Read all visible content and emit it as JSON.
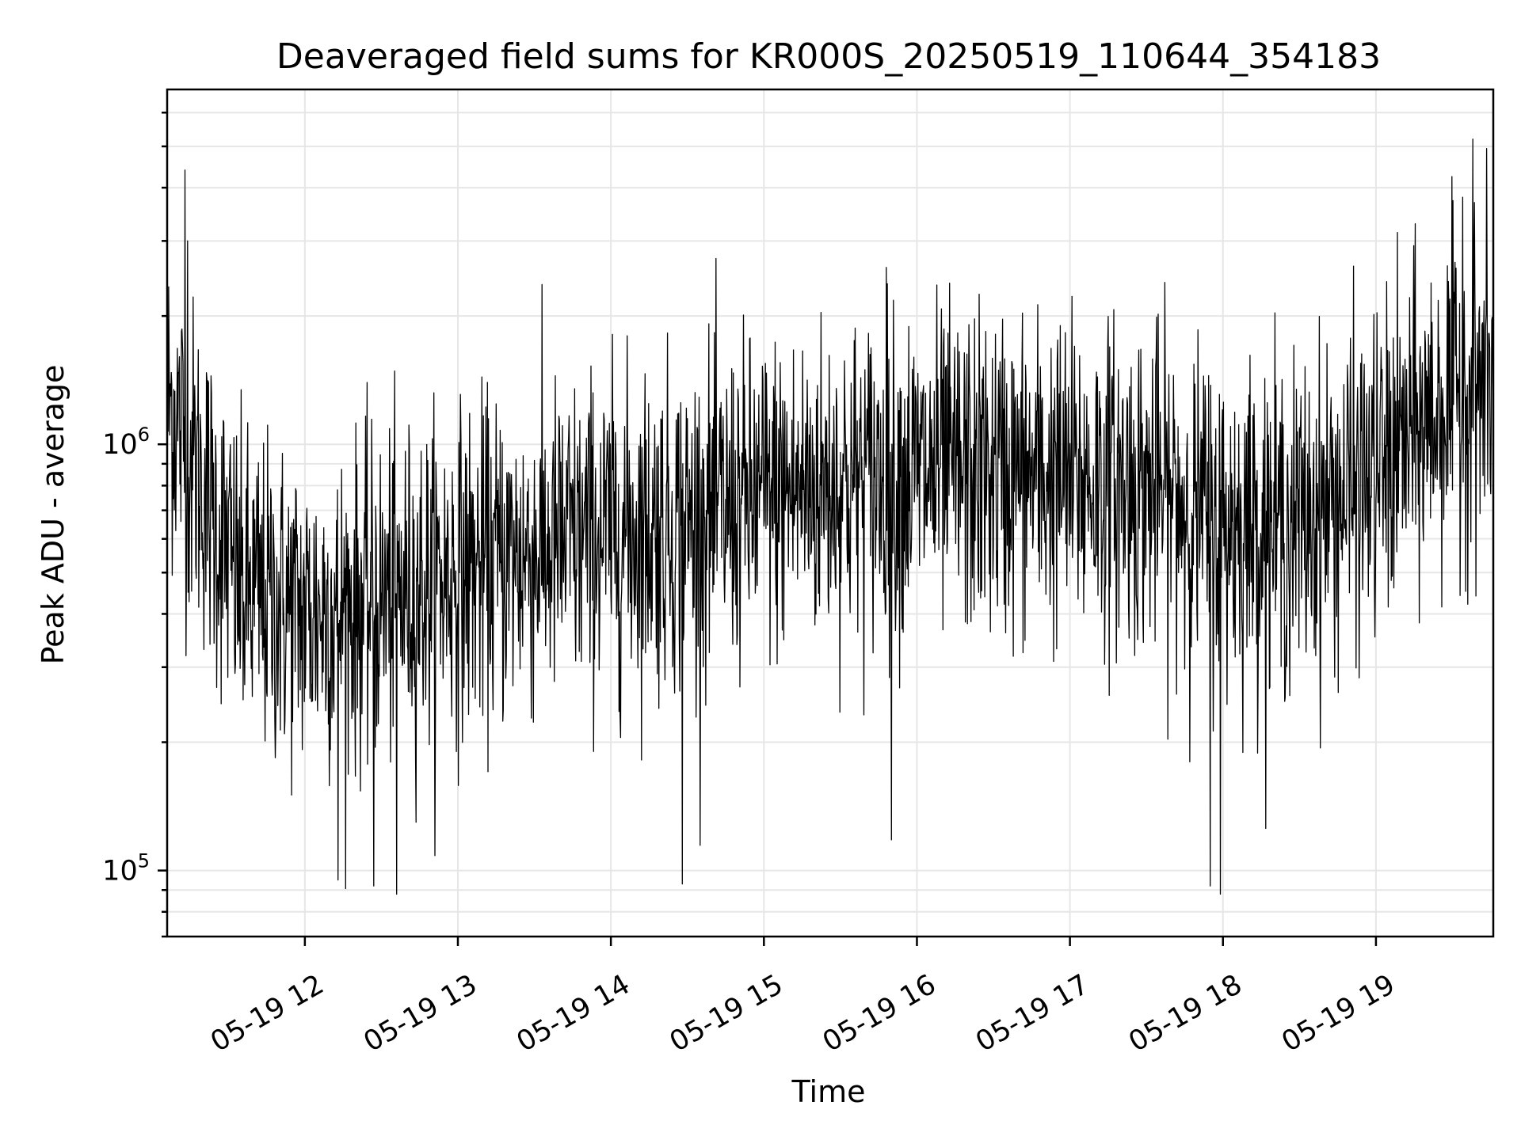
{
  "chart_data": {
    "type": "line",
    "title": "Deaveraged field sums for KR000S_20250519_110644_354183",
    "xlabel": "Time",
    "ylabel": "Peak ADU - average",
    "y_scale": "log",
    "grid": true,
    "legend": "none",
    "xlim": [
      "2025-05-19 11:06",
      "2025-05-19 19:46"
    ],
    "ylim": [
      70000,
      6800000
    ],
    "x_ticks": [
      {
        "label": "05-19 12",
        "time": "2025-05-19 12:00"
      },
      {
        "label": "05-19 13",
        "time": "2025-05-19 13:00"
      },
      {
        "label": "05-19 14",
        "time": "2025-05-19 14:00"
      },
      {
        "label": "05-19 15",
        "time": "2025-05-19 15:00"
      },
      {
        "label": "05-19 16",
        "time": "2025-05-19 16:00"
      },
      {
        "label": "05-19 17",
        "time": "2025-05-19 17:00"
      },
      {
        "label": "05-19 18",
        "time": "2025-05-19 18:00"
      },
      {
        "label": "05-19 19",
        "time": "2025-05-19 19:00"
      }
    ],
    "y_ticks": [
      {
        "base": "10",
        "exp": "5",
        "value": 100000
      },
      {
        "base": "10",
        "exp": "6",
        "value": 1000000
      }
    ],
    "series": [
      {
        "color": "#000000",
        "trend": [
          {
            "time": "2025-05-19 11:06",
            "median": 1300000
          },
          {
            "time": "2025-05-19 11:20",
            "median": 800000
          },
          {
            "time": "2025-05-19 11:35",
            "median": 450000
          },
          {
            "time": "2025-05-19 12:00",
            "median": 400000
          },
          {
            "time": "2025-05-19 12:30",
            "median": 430000
          },
          {
            "time": "2025-05-19 13:00",
            "median": 500000
          },
          {
            "time": "2025-05-19 13:30",
            "median": 560000
          },
          {
            "time": "2025-05-19 14:00",
            "median": 620000
          },
          {
            "time": "2025-05-19 14:30",
            "median": 650000
          },
          {
            "time": "2025-05-19 15:00",
            "median": 750000
          },
          {
            "time": "2025-05-19 15:30",
            "median": 820000
          },
          {
            "time": "2025-05-19 16:00",
            "median": 850000
          },
          {
            "time": "2025-05-19 16:30",
            "median": 850000
          },
          {
            "time": "2025-05-19 17:00",
            "median": 820000
          },
          {
            "time": "2025-05-19 17:30",
            "median": 800000
          },
          {
            "time": "2025-05-19 18:00",
            "median": 650000
          },
          {
            "time": "2025-05-19 18:30",
            "median": 650000
          },
          {
            "time": "2025-05-19 19:00",
            "median": 850000
          },
          {
            "time": "2025-05-19 19:30",
            "median": 1300000
          },
          {
            "time": "2025-05-19 19:46",
            "median": 1400000
          }
        ],
        "spikes": [
          {
            "time": "2025-05-19 11:13",
            "value": 4400000
          },
          {
            "time": "2025-05-19 11:14",
            "value": 3000000
          },
          {
            "time": "2025-05-19 12:13",
            "value": 95000
          },
          {
            "time": "2025-05-19 12:27",
            "value": 92000
          },
          {
            "time": "2025-05-19 12:36",
            "value": 88000
          },
          {
            "time": "2025-05-19 14:28",
            "value": 93000
          },
          {
            "time": "2025-05-19 15:48",
            "value": 2600000
          },
          {
            "time": "2025-05-19 15:50",
            "value": 118000
          },
          {
            "time": "2025-05-19 17:55",
            "value": 92000
          },
          {
            "time": "2025-05-19 17:59",
            "value": 88000
          },
          {
            "time": "2025-05-19 19:38",
            "value": 5200000
          },
          {
            "time": "2025-05-19 19:34",
            "value": 3800000
          }
        ]
      }
    ]
  }
}
